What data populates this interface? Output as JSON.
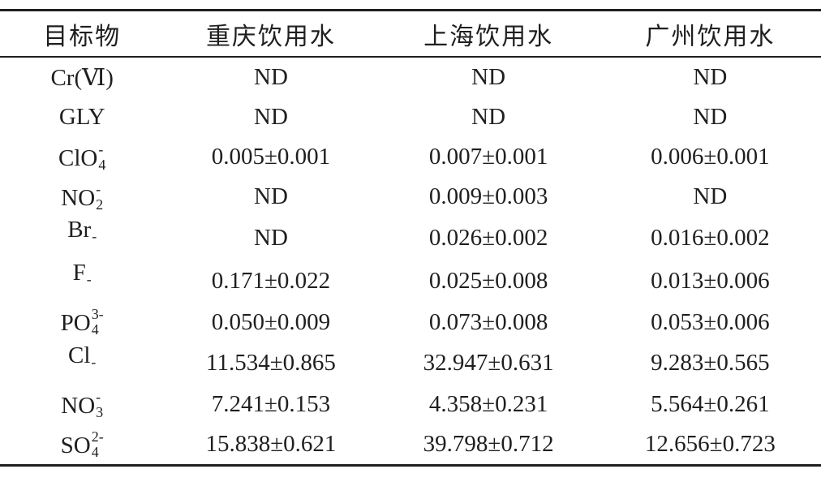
{
  "colors": {
    "background": "#ffffff",
    "text": "#1f1f1f",
    "rule": "#1f1f1f"
  },
  "table": {
    "columns": [
      {
        "label": "目标物"
      },
      {
        "label": "重庆饮用水"
      },
      {
        "label": "上海饮用水"
      },
      {
        "label": "广州饮用水"
      }
    ],
    "not_detected_label": "ND",
    "rows": [
      {
        "analyte": {
          "base": "Cr(Ⅵ)",
          "sub": "",
          "sup": ""
        },
        "values": [
          "ND",
          "ND",
          "ND"
        ]
      },
      {
        "analyte": {
          "base": "GLY",
          "sub": "",
          "sup": ""
        },
        "values": [
          "ND",
          "ND",
          "ND"
        ]
      },
      {
        "analyte": {
          "base": "ClO",
          "sub": "4",
          "sup": "-"
        },
        "values": [
          "0.005±0.001",
          "0.007±0.001",
          "0.006±0.001"
        ]
      },
      {
        "analyte": {
          "base": "NO",
          "sub": "2",
          "sup": "-"
        },
        "values": [
          "ND",
          "0.009±0.003",
          "ND"
        ]
      },
      {
        "analyte": {
          "base": "Br",
          "sub": "",
          "sup": "-"
        },
        "values": [
          "ND",
          "0.026±0.002",
          "0.016±0.002"
        ]
      },
      {
        "analyte": {
          "base": "F",
          "sub": "",
          "sup": "-"
        },
        "values": [
          "0.171±0.022",
          "0.025±0.008",
          "0.013±0.006"
        ]
      },
      {
        "analyte": {
          "base": "PO",
          "sub": "4",
          "sup": "3-"
        },
        "values": [
          "0.050±0.009",
          "0.073±0.008",
          "0.053±0.006"
        ]
      },
      {
        "analyte": {
          "base": "Cl",
          "sub": "",
          "sup": "-"
        },
        "values": [
          "11.534±0.865",
          "32.947±0.631",
          "9.283±0.565"
        ]
      },
      {
        "analyte": {
          "base": "NO",
          "sub": "3",
          "sup": "-"
        },
        "values": [
          "7.241±0.153",
          "4.358±0.231",
          "5.564±0.261"
        ]
      },
      {
        "analyte": {
          "base": "SO",
          "sub": "4",
          "sup": "2-"
        },
        "values": [
          "15.838±0.621",
          "39.798±0.712",
          "12.656±0.723"
        ]
      }
    ]
  }
}
